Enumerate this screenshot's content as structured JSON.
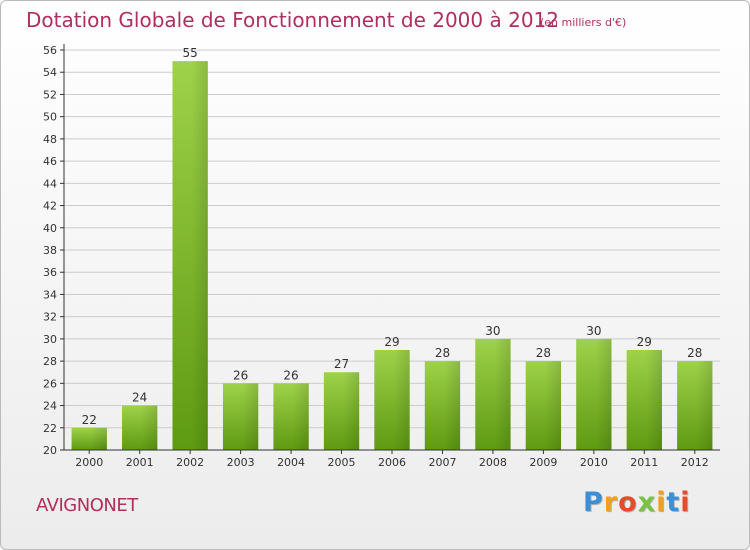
{
  "chart_data": {
    "type": "bar",
    "title": "Dotation Globale de Fonctionnement de 2000 à 2012",
    "subtitle": "(en milliers d'€)",
    "categories": [
      "2000",
      "2001",
      "2002",
      "2003",
      "2004",
      "2005",
      "2006",
      "2007",
      "2008",
      "2009",
      "2010",
      "2011",
      "2012"
    ],
    "values": [
      22,
      24,
      55,
      26,
      26,
      27,
      29,
      28,
      30,
      28,
      30,
      29,
      28
    ],
    "ylim": [
      20,
      56
    ],
    "yticks": [
      20,
      22,
      24,
      26,
      28,
      30,
      32,
      34,
      36,
      38,
      40,
      42,
      44,
      46,
      48,
      50,
      52,
      54,
      56
    ],
    "grid": true,
    "bar_color_top": "#9ed24a",
    "bar_color_bottom": "#5e9a12"
  },
  "commune": "AVIGNONET",
  "logo": {
    "text": "Proxiti",
    "colors": [
      "#3a8fd6",
      "#f0a020",
      "#e64b2a",
      "#7cc242",
      "#f0a020",
      "#3a8fd6",
      "#e64b2a"
    ]
  },
  "colors": {
    "accent": "#b0305a",
    "axis": "#333333",
    "grid": "#cccccc"
  }
}
